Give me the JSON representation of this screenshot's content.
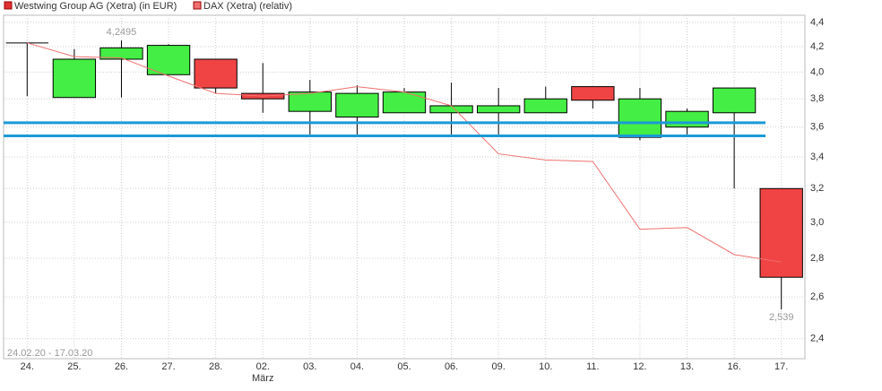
{
  "chart_data": {
    "type": "candlestick",
    "legend": [
      "Westwing Group AG (Xetra) (in EUR)",
      "DAX (Xetra) (relativ)"
    ],
    "date_range": "24.02.20 - 17.03.20",
    "categories": [
      "24.",
      "25.",
      "26.",
      "27.",
      "28.",
      "02.",
      "03.",
      "04.",
      "05.",
      "06.",
      "09.",
      "10.",
      "11.",
      "12.",
      "13.",
      "16.",
      "17."
    ],
    "month_label": {
      "label": "März",
      "category": "02."
    },
    "log_scale": true,
    "grid": true,
    "ylim": [
      2.31,
      4.46
    ],
    "yticks": [
      {
        "value": 2.4,
        "label": "2,4"
      },
      {
        "value": 2.6,
        "label": "2,6"
      },
      {
        "value": 2.8,
        "label": "2,8"
      },
      {
        "value": 3.0,
        "label": "3,0"
      },
      {
        "value": 3.2,
        "label": "3,2"
      },
      {
        "value": 3.4,
        "label": "3,4"
      },
      {
        "value": 3.6,
        "label": "3,6"
      },
      {
        "value": 3.8,
        "label": "3,8"
      },
      {
        "value": 4.0,
        "label": "4,0"
      },
      {
        "value": 4.2,
        "label": "4,2"
      },
      {
        "value": 4.4,
        "label": "4,4"
      }
    ],
    "candles": {
      "up_color": "#44ee44",
      "down_color": "#f04444",
      "open": [
        4.23,
        3.81,
        4.1,
        3.98,
        4.1,
        3.84,
        3.71,
        3.67,
        3.7,
        3.7,
        3.7,
        3.7,
        3.89,
        3.53,
        3.6,
        3.7,
        3.2
      ],
      "high": [
        4.23,
        4.18,
        4.2495,
        4.22,
        4.1,
        4.07,
        3.94,
        3.9,
        3.88,
        3.92,
        3.88,
        3.89,
        3.89,
        3.88,
        3.73,
        3.88,
        3.2
      ],
      "low": [
        3.82,
        3.81,
        3.81,
        3.98,
        3.84,
        3.7,
        3.55,
        3.55,
        3.7,
        3.55,
        3.55,
        3.7,
        3.73,
        3.51,
        3.55,
        3.2,
        2.539
      ],
      "close": [
        4.23,
        4.1,
        4.19,
        4.21,
        3.88,
        3.8,
        3.85,
        3.84,
        3.85,
        3.75,
        3.75,
        3.8,
        3.79,
        3.8,
        3.71,
        3.88,
        2.7
      ]
    },
    "line": {
      "color": "#f07070",
      "values": [
        4.23,
        4.12,
        4.11,
        3.97,
        3.84,
        3.82,
        3.84,
        3.89,
        3.85,
        3.75,
        3.42,
        3.38,
        3.37,
        2.96,
        2.97,
        2.82,
        2.78
      ]
    },
    "annotations": [
      {
        "category": "26.",
        "value": 4.2495,
        "label": "4,2495",
        "position": "above"
      },
      {
        "category": "17.",
        "value": 2.539,
        "label": "2,539",
        "position": "below"
      }
    ],
    "hlines": {
      "color": "#1a9ad6",
      "values": [
        3.63,
        3.54
      ]
    }
  }
}
